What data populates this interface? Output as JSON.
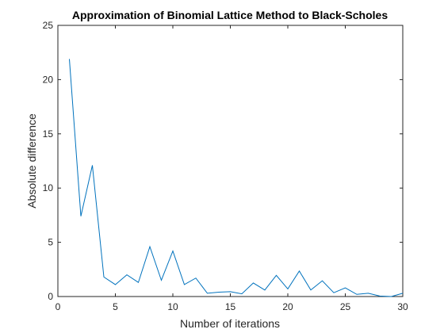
{
  "chart_data": {
    "type": "line",
    "title": "Approximation of Binomial Lattice Method to Black-Scholes",
    "xlabel": "Number of iterations",
    "ylabel": "Absolute difference",
    "xlim": [
      0,
      30
    ],
    "ylim": [
      0,
      25
    ],
    "xticks": [
      0,
      5,
      10,
      15,
      20,
      25,
      30
    ],
    "yticks": [
      0,
      5,
      10,
      15,
      20,
      25
    ],
    "xtick_labels": [
      "0",
      "5",
      "10",
      "15",
      "20",
      "25",
      "30"
    ],
    "ytick_labels": [
      "0",
      "5",
      "10",
      "15",
      "20",
      "25"
    ],
    "grid": false,
    "series": [
      {
        "color": "#0072BD",
        "x": [
          1,
          2,
          3,
          4,
          5,
          6,
          7,
          8,
          9,
          10,
          11,
          12,
          13,
          14,
          15,
          16,
          17,
          18,
          19,
          20,
          21,
          22,
          23,
          24,
          25,
          26,
          27,
          28,
          29,
          30
        ],
        "y": [
          21.9,
          7.4,
          12.1,
          1.8,
          1.1,
          2.0,
          1.3,
          4.6,
          1.5,
          4.2,
          1.1,
          1.7,
          0.3,
          0.4,
          0.45,
          0.25,
          1.25,
          0.6,
          1.95,
          0.7,
          2.35,
          0.6,
          1.45,
          0.35,
          0.8,
          0.2,
          0.3,
          0.05,
          0.0,
          0.3
        ]
      }
    ]
  }
}
